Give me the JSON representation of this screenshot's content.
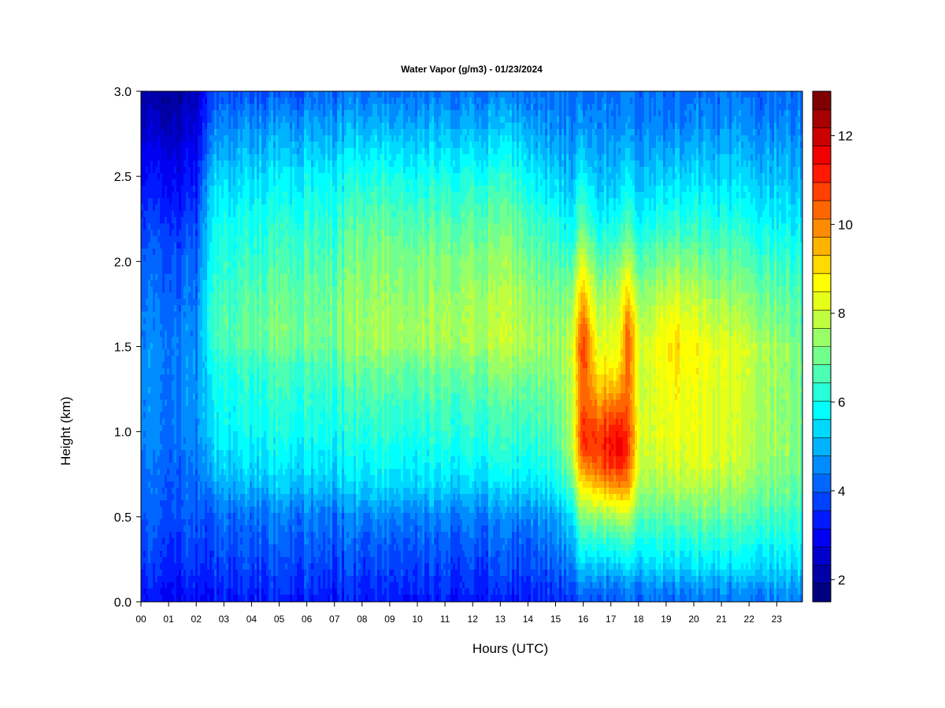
{
  "chart_data": {
    "type": "heatmap",
    "title": "Water Vapor (g/m3) - 01/23/2024",
    "xlabel": "Hours (UTC)",
    "ylabel": "Height (km)",
    "x_ticks": [
      "00",
      "01",
      "02",
      "03",
      "04",
      "05",
      "06",
      "07",
      "08",
      "09",
      "10",
      "11",
      "12",
      "13",
      "14",
      "15",
      "16",
      "17",
      "18",
      "19",
      "20",
      "21",
      "22",
      "23"
    ],
    "y_ticks": [
      "0.0",
      "0.5",
      "1.0",
      "1.5",
      "2.0",
      "2.5",
      "3.0"
    ],
    "xlim": [
      0,
      24
    ],
    "ylim": [
      0,
      3.0
    ],
    "colorbar": {
      "range": [
        1.5,
        13.0
      ],
      "levels": [
        1.5,
        2.0,
        2.5,
        3.0,
        3.5,
        4.0,
        4.5,
        5.0,
        5.5,
        6.0,
        6.5,
        7.0,
        7.5,
        8.0,
        8.5,
        9.0,
        9.5,
        10.0,
        10.5,
        11.0,
        11.5,
        12.0,
        12.5,
        13.0
      ],
      "ticks": [
        "2",
        "4",
        "6",
        "8",
        "10",
        "12"
      ],
      "colors": [
        "#00007f",
        "#0000a6",
        "#0000cc",
        "#0000f2",
        "#0019ff",
        "#0040ff",
        "#0066ff",
        "#008cff",
        "#00b3ff",
        "#00d9ff",
        "#00ffff",
        "#26ffd9",
        "#4cffb3",
        "#73ff8c",
        "#99ff66",
        "#c0ff40",
        "#e6ff19",
        "#ffff00",
        "#ffd900",
        "#ffb300",
        "#ff8c00",
        "#ff6600",
        "#ff4000",
        "#ff1900",
        "#f20000",
        "#cc0000",
        "#a60000",
        "#7f0000"
      ]
    },
    "heights_km": [
      0.0,
      0.1,
      0.2,
      0.35,
      0.5,
      0.6,
      0.7,
      0.8,
      0.9,
      1.0,
      1.2,
      1.4,
      1.5,
      1.6,
      1.8,
      2.0,
      2.2,
      2.5,
      2.8,
      3.0
    ],
    "profiles": [
      {
        "hour": 0.0,
        "values": [
          3.0,
          3.3,
          3.5,
          3.7,
          3.9,
          4.0,
          4.1,
          4.2,
          4.3,
          4.4,
          4.4,
          4.4,
          4.4,
          4.3,
          4.2,
          4.0,
          3.6,
          3.0,
          2.3,
          2.0
        ]
      },
      {
        "hour": 1.0,
        "values": [
          3.0,
          3.3,
          3.5,
          3.7,
          3.9,
          4.0,
          4.1,
          4.2,
          4.3,
          4.4,
          4.4,
          4.5,
          4.5,
          4.4,
          4.2,
          4.0,
          3.7,
          3.1,
          2.4,
          2.0
        ]
      },
      {
        "hour": 2.0,
        "values": [
          3.0,
          3.3,
          3.5,
          3.7,
          3.9,
          4.0,
          4.1,
          4.2,
          4.3,
          4.4,
          4.5,
          4.5,
          4.5,
          4.4,
          4.2,
          4.0,
          3.7,
          3.1,
          2.5,
          2.2
        ]
      },
      {
        "hour": 2.5,
        "values": [
          3.1,
          3.4,
          3.6,
          3.9,
          4.1,
          4.4,
          4.8,
          5.1,
          5.3,
          5.5,
          5.7,
          5.9,
          6.2,
          6.4,
          6.2,
          6.0,
          5.8,
          5.2,
          4.3,
          3.8
        ]
      },
      {
        "hour": 3.5,
        "values": [
          3.2,
          3.5,
          3.7,
          4.0,
          4.2,
          4.6,
          5.1,
          5.4,
          5.6,
          5.8,
          6.0,
          6.3,
          6.7,
          6.8,
          6.6,
          6.3,
          6.0,
          5.4,
          4.5,
          3.9
        ]
      },
      {
        "hour": 5.0,
        "values": [
          3.3,
          3.6,
          3.8,
          4.1,
          4.4,
          4.8,
          5.3,
          5.6,
          5.8,
          6.0,
          6.3,
          6.6,
          7.0,
          7.1,
          6.9,
          6.6,
          6.3,
          5.6,
          4.7,
          4.0
        ]
      },
      {
        "hour": 7.0,
        "values": [
          3.2,
          3.5,
          3.7,
          4.0,
          4.3,
          4.7,
          5.2,
          5.5,
          5.7,
          5.9,
          6.2,
          6.5,
          6.9,
          7.0,
          6.9,
          6.6,
          6.3,
          5.7,
          4.8,
          4.1
        ]
      },
      {
        "hour": 8.0,
        "values": [
          3.3,
          3.6,
          3.8,
          4.1,
          4.5,
          5.0,
          5.5,
          5.8,
          6.0,
          6.2,
          6.6,
          7.1,
          7.5,
          7.6,
          7.4,
          7.2,
          6.9,
          6.1,
          5.0,
          4.3
        ]
      },
      {
        "hour": 10.0,
        "values": [
          3.3,
          3.6,
          3.8,
          4.1,
          4.5,
          5.0,
          5.5,
          5.8,
          6.0,
          6.2,
          6.6,
          7.1,
          7.5,
          7.6,
          7.4,
          7.2,
          6.8,
          6.0,
          5.0,
          4.3
        ]
      },
      {
        "hour": 12.0,
        "values": [
          3.3,
          3.6,
          3.8,
          4.1,
          4.5,
          5.0,
          5.5,
          5.8,
          6.1,
          6.3,
          6.7,
          7.2,
          7.6,
          7.7,
          7.6,
          7.3,
          6.9,
          6.1,
          5.0,
          4.4
        ]
      },
      {
        "hour": 13.5,
        "values": [
          3.3,
          3.6,
          3.8,
          4.1,
          4.5,
          5.0,
          5.5,
          5.9,
          6.2,
          6.4,
          6.8,
          7.4,
          7.8,
          7.9,
          7.7,
          7.4,
          7.0,
          6.2,
          5.1,
          4.4
        ]
      },
      {
        "hour": 15.0,
        "values": [
          3.4,
          3.7,
          4.0,
          4.4,
          4.8,
          5.3,
          5.8,
          6.2,
          6.4,
          6.6,
          6.9,
          7.2,
          7.4,
          7.3,
          7.0,
          6.6,
          6.1,
          5.3,
          4.5,
          4.2
        ]
      },
      {
        "hour": 15.5,
        "values": [
          3.6,
          4.0,
          4.4,
          4.9,
          5.4,
          6.0,
          6.6,
          7.1,
          7.4,
          7.5,
          7.6,
          7.7,
          7.8,
          7.6,
          7.2,
          6.5,
          5.8,
          5.0,
          4.5,
          4.3
        ]
      },
      {
        "hour": 16.05,
        "values": [
          3.9,
          4.6,
          5.3,
          6.2,
          7.3,
          8.3,
          9.2,
          10.2,
          11.0,
          11.2,
          10.6,
          10.8,
          11.0,
          10.6,
          9.5,
          8.2,
          7.0,
          5.8,
          4.6,
          4.2
        ]
      },
      {
        "hour": 16.5,
        "values": [
          3.8,
          4.4,
          5.1,
          6.1,
          7.2,
          8.4,
          9.5,
          10.3,
          10.8,
          10.6,
          9.5,
          8.6,
          8.2,
          7.9,
          7.4,
          6.6,
          5.8,
          5.0,
          4.5,
          4.3
        ]
      },
      {
        "hour": 17.3,
        "values": [
          3.9,
          4.5,
          5.3,
          6.4,
          7.8,
          9.0,
          10.3,
          11.2,
          11.7,
          11.5,
          10.0,
          8.8,
          8.5,
          8.3,
          7.9,
          7.1,
          6.2,
          5.2,
          4.6,
          4.3
        ]
      },
      {
        "hour": 17.6,
        "values": [
          4.0,
          4.6,
          5.4,
          6.5,
          7.8,
          8.8,
          9.7,
          10.3,
          10.6,
          10.6,
          10.2,
          10.2,
          10.4,
          10.2,
          9.0,
          7.7,
          6.6,
          5.5,
          4.6,
          4.3
        ]
      },
      {
        "hour": 18.2,
        "values": [
          4.1,
          4.6,
          5.2,
          5.9,
          6.6,
          7.0,
          7.4,
          7.6,
          7.8,
          7.9,
          7.8,
          7.8,
          7.8,
          7.6,
          7.2,
          6.6,
          5.9,
          5.0,
          4.4,
          4.2
        ]
      },
      {
        "hour": 19.2,
        "values": [
          4.3,
          4.8,
          5.5,
          6.2,
          6.9,
          7.4,
          7.9,
          8.2,
          8.4,
          8.6,
          8.7,
          9.0,
          9.2,
          8.9,
          8.2,
          7.4,
          6.5,
          5.5,
          4.6,
          4.3
        ]
      },
      {
        "hour": 20.5,
        "values": [
          4.3,
          4.8,
          5.5,
          6.2,
          6.9,
          7.4,
          7.8,
          8.1,
          8.2,
          8.3,
          8.3,
          8.4,
          8.4,
          8.1,
          7.6,
          7.0,
          6.3,
          5.4,
          4.6,
          4.3
        ]
      },
      {
        "hour": 22.0,
        "values": [
          4.3,
          4.8,
          5.5,
          6.1,
          6.7,
          7.1,
          7.4,
          7.7,
          7.8,
          7.9,
          7.9,
          8.0,
          8.0,
          7.7,
          7.2,
          6.7,
          6.1,
          5.3,
          4.6,
          4.3
        ]
      },
      {
        "hour": 23.8,
        "values": [
          4.4,
          4.9,
          5.4,
          5.9,
          6.3,
          6.6,
          6.8,
          7.0,
          7.1,
          7.1,
          7.1,
          7.1,
          7.1,
          6.9,
          6.6,
          6.2,
          5.7,
          5.0,
          4.5,
          4.2
        ]
      }
    ]
  }
}
